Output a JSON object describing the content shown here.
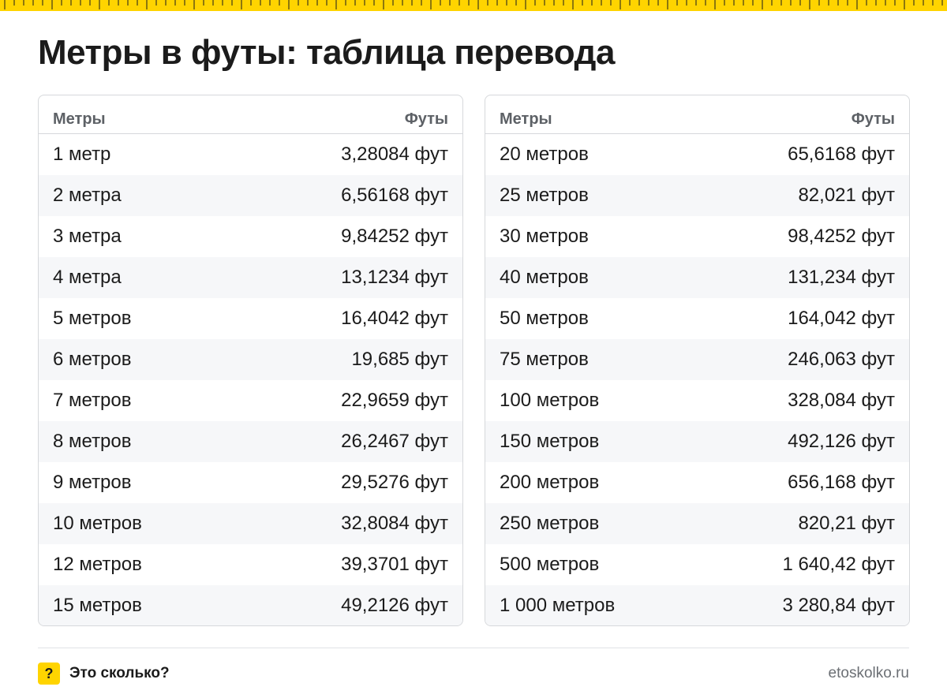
{
  "title": "Метры в футы: таблица перевода",
  "colors": {
    "accent": "#ffd400",
    "text": "#1b1b1b",
    "header_text": "#5d6166",
    "zebra": "#f6f7f9",
    "border": "#d6d8db"
  },
  "left_table": {
    "headers": {
      "col1": "Метры",
      "col2": "Футы"
    },
    "rows": [
      {
        "meters": "1 метр",
        "feet": "3,28084 фут"
      },
      {
        "meters": "2 метра",
        "feet": "6,56168 фут"
      },
      {
        "meters": "3 метра",
        "feet": "9,84252 фут"
      },
      {
        "meters": "4 метра",
        "feet": "13,1234 фут"
      },
      {
        "meters": "5 метров",
        "feet": "16,4042 фут"
      },
      {
        "meters": "6 метров",
        "feet": "19,685 фут"
      },
      {
        "meters": "7 метров",
        "feet": "22,9659 фут"
      },
      {
        "meters": "8 метров",
        "feet": "26,2467 фут"
      },
      {
        "meters": "9 метров",
        "feet": "29,5276 фут"
      },
      {
        "meters": "10 метров",
        "feet": "32,8084 фут"
      },
      {
        "meters": "12 метров",
        "feet": "39,3701 фут"
      },
      {
        "meters": "15 метров",
        "feet": "49,2126 фут"
      }
    ]
  },
  "right_table": {
    "headers": {
      "col1": "Метры",
      "col2": "Футы"
    },
    "rows": [
      {
        "meters": "20 метров",
        "feet": "65,6168 фут"
      },
      {
        "meters": "25 метров",
        "feet": "82,021 фут"
      },
      {
        "meters": "30 метров",
        "feet": "98,4252 фут"
      },
      {
        "meters": "40 метров",
        "feet": "131,234 фут"
      },
      {
        "meters": "50 метров",
        "feet": "164,042 фут"
      },
      {
        "meters": "75 метров",
        "feet": "246,063 фут"
      },
      {
        "meters": "100 метров",
        "feet": "328,084 фут"
      },
      {
        "meters": "150 метров",
        "feet": "492,126 фут"
      },
      {
        "meters": "200 метров",
        "feet": "656,168 фут"
      },
      {
        "meters": "250 метров",
        "feet": "820,21 фут"
      },
      {
        "meters": "500 метров",
        "feet": "1 640,42 фут"
      },
      {
        "meters": "1 000 метров",
        "feet": "3 280,84 фут"
      }
    ]
  },
  "footer": {
    "badge": "?",
    "brand": "Это сколько?",
    "site": "etoskolko.ru",
    "badge_icon": "question-mark-icon"
  }
}
